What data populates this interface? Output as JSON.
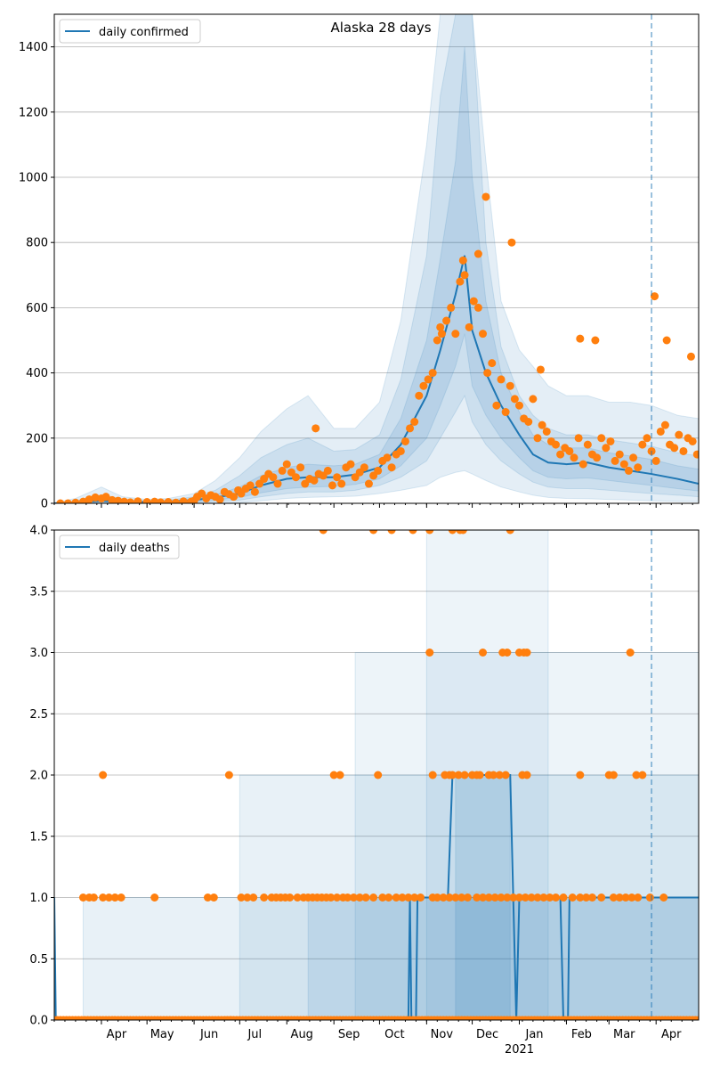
{
  "chart_data": [
    {
      "type": "line",
      "title": "Alaska 28 days",
      "legend": {
        "label": "daily confirmed",
        "placement": "top-left"
      },
      "xlim": [
        "2020-03-01",
        "2021-04-29"
      ],
      "ylim": [
        0,
        1500
      ],
      "yticks": [
        0,
        200,
        400,
        600,
        800,
        1000,
        1200,
        1400
      ],
      "grid": "y",
      "forecast_start": "2021-03-29",
      "colors": {
        "line": "#1f77b4",
        "points": "#ff7f0e",
        "band": "#1f77b4",
        "marker_line": "#1f77b4"
      },
      "line": {
        "x": [
          "2020-03-01",
          "2020-03-15",
          "2020-04-01",
          "2020-04-15",
          "2020-05-01",
          "2020-05-15",
          "2020-06-01",
          "2020-06-15",
          "2020-07-01",
          "2020-07-15",
          "2020-08-01",
          "2020-08-15",
          "2020-09-01",
          "2020-09-15",
          "2020-10-01",
          "2020-10-15",
          "2020-11-01",
          "2020-11-10",
          "2020-11-20",
          "2020-11-26",
          "2020-12-01",
          "2020-12-10",
          "2020-12-20",
          "2021-01-01",
          "2021-01-10",
          "2021-01-20",
          "2021-02-01",
          "2021-02-15",
          "2021-03-01",
          "2021-03-15",
          "2021-03-29",
          "2021-04-15",
          "2021-04-29"
        ],
        "y": [
          0,
          3,
          8,
          5,
          4,
          5,
          10,
          18,
          30,
          55,
          75,
          80,
          80,
          88,
          110,
          180,
          330,
          470,
          640,
          760,
          530,
          400,
          300,
          210,
          150,
          125,
          120,
          125,
          110,
          100,
          90,
          75,
          60
        ]
      },
      "band_x": [
        "2020-03-01",
        "2020-03-15",
        "2020-04-01",
        "2020-04-15",
        "2020-05-01",
        "2020-05-15",
        "2020-06-01",
        "2020-06-15",
        "2020-07-01",
        "2020-07-15",
        "2020-08-01",
        "2020-08-15",
        "2020-09-01",
        "2020-09-15",
        "2020-10-01",
        "2020-10-15",
        "2020-11-01",
        "2020-11-10",
        "2020-11-20",
        "2020-11-26",
        "2020-12-01",
        "2020-12-10",
        "2020-12-20",
        "2021-01-01",
        "2021-01-10",
        "2021-01-20",
        "2021-02-01",
        "2021-02-15",
        "2021-03-01",
        "2021-03-15",
        "2021-03-29",
        "2021-04-15",
        "2021-04-29"
      ],
      "bands": [
        {
          "upper": [
            2,
            15,
            50,
            20,
            12,
            15,
            30,
            70,
            140,
            220,
            290,
            330,
            230,
            230,
            310,
            560,
            1100,
            1500,
            1500,
            1500,
            1500,
            1050,
            620,
            470,
            420,
            360,
            330,
            330,
            310,
            310,
            300,
            270,
            260
          ],
          "lower": [
            0,
            0,
            0,
            0,
            0,
            0,
            0,
            0,
            2,
            8,
            15,
            18,
            20,
            22,
            30,
            40,
            55,
            80,
            95,
            100,
            90,
            70,
            50,
            35,
            25,
            18,
            15,
            14,
            12,
            10,
            8,
            6,
            5
          ],
          "opacity": 0.12
        },
        {
          "upper": [
            1,
            8,
            25,
            12,
            8,
            10,
            20,
            40,
            85,
            140,
            180,
            200,
            160,
            165,
            210,
            380,
            760,
            1250,
            1500,
            1500,
            1500,
            800,
            480,
            330,
            270,
            230,
            210,
            210,
            195,
            185,
            175,
            155,
            145
          ],
          "lower": [
            0,
            0,
            2,
            0,
            0,
            0,
            2,
            5,
            10,
            20,
            30,
            35,
            35,
            40,
            55,
            80,
            130,
            200,
            280,
            330,
            250,
            180,
            130,
            90,
            65,
            50,
            45,
            45,
            40,
            35,
            30,
            25,
            20
          ],
          "opacity": 0.12
        },
        {
          "upper": [
            0,
            5,
            14,
            9,
            6,
            7,
            14,
            26,
            50,
            85,
            110,
            120,
            115,
            120,
            150,
            260,
            500,
            750,
            1050,
            1400,
            1000,
            620,
            400,
            280,
            210,
            180,
            170,
            170,
            155,
            145,
            135,
            115,
            105
          ],
          "lower": [
            0,
            1,
            4,
            2,
            2,
            2,
            6,
            10,
            18,
            32,
            45,
            50,
            52,
            58,
            75,
            115,
            200,
            300,
            420,
            520,
            360,
            270,
            200,
            140,
            100,
            80,
            75,
            78,
            70,
            62,
            55,
            45,
            38
          ],
          "opacity": 0.12
        }
      ],
      "points": {
        "x": [
          "2020-03-05",
          "2020-03-10",
          "2020-03-15",
          "2020-03-20",
          "2020-03-24",
          "2020-03-28",
          "2020-04-01",
          "2020-04-04",
          "2020-04-08",
          "2020-04-12",
          "2020-04-16",
          "2020-04-20",
          "2020-04-25",
          "2020-05-01",
          "2020-05-06",
          "2020-05-10",
          "2020-05-15",
          "2020-05-20",
          "2020-05-25",
          "2020-05-30",
          "2020-06-01",
          "2020-06-03",
          "2020-06-06",
          "2020-06-09",
          "2020-06-12",
          "2020-06-15",
          "2020-06-18",
          "2020-06-21",
          "2020-06-24",
          "2020-06-27",
          "2020-06-30",
          "2020-07-02",
          "2020-07-05",
          "2020-07-08",
          "2020-07-11",
          "2020-07-14",
          "2020-07-17",
          "2020-07-20",
          "2020-07-23",
          "2020-07-26",
          "2020-07-29",
          "2020-08-01",
          "2020-08-04",
          "2020-08-07",
          "2020-08-10",
          "2020-08-13",
          "2020-08-16",
          "2020-08-19",
          "2020-08-22",
          "2020-08-25",
          "2020-08-28",
          "2020-08-31",
          "2020-09-03",
          "2020-09-06",
          "2020-09-09",
          "2020-09-12",
          "2020-09-15",
          "2020-09-18",
          "2020-09-21",
          "2020-09-24",
          "2020-09-27",
          "2020-09-30",
          "2020-10-03",
          "2020-10-06",
          "2020-10-09",
          "2020-10-12",
          "2020-10-15",
          "2020-10-18",
          "2020-10-21",
          "2020-10-24",
          "2020-10-27",
          "2020-10-30",
          "2020-11-02",
          "2020-11-05",
          "2020-11-08",
          "2020-11-11",
          "2020-11-14",
          "2020-11-17",
          "2020-11-20",
          "2020-11-23",
          "2020-11-26",
          "2020-11-29",
          "2020-12-02",
          "2020-12-05",
          "2020-12-08",
          "2020-12-11",
          "2020-12-14",
          "2020-12-17",
          "2020-12-20",
          "2020-12-23",
          "2020-12-26",
          "2020-12-29",
          "2021-01-01",
          "2021-01-04",
          "2021-01-07",
          "2021-01-10",
          "2021-01-13",
          "2021-01-16",
          "2021-01-19",
          "2021-01-22",
          "2021-01-25",
          "2021-01-28",
          "2021-01-31",
          "2021-02-03",
          "2021-02-06",
          "2021-02-09",
          "2021-02-12",
          "2021-02-15",
          "2021-02-18",
          "2021-02-21",
          "2021-02-24",
          "2021-02-27",
          "2021-03-02",
          "2021-03-05",
          "2021-03-08",
          "2021-03-11",
          "2021-03-14",
          "2021-03-17",
          "2021-03-20",
          "2021-03-23",
          "2021-03-26",
          "2021-03-29",
          "2021-04-01",
          "2021-04-04",
          "2021-04-07",
          "2021-04-10",
          "2021-04-13",
          "2021-04-16",
          "2021-04-19",
          "2021-04-22",
          "2021-04-25",
          "2021-04-28",
          "2020-08-20",
          "2020-11-25",
          "2020-12-10",
          "2020-12-27",
          "2021-02-10",
          "2021-02-20",
          "2021-03-31",
          "2021-04-08",
          "2021-04-24",
          "2020-12-05",
          "2020-11-10",
          "2021-01-15"
        ],
        "y": [
          0,
          0,
          2,
          5,
          12,
          18,
          15,
          20,
          10,
          8,
          5,
          3,
          6,
          4,
          5,
          3,
          4,
          2,
          6,
          5,
          8,
          20,
          30,
          15,
          25,
          20,
          12,
          35,
          28,
          20,
          40,
          30,
          45,
          55,
          35,
          60,
          75,
          90,
          80,
          60,
          100,
          120,
          95,
          80,
          110,
          60,
          75,
          70,
          90,
          85,
          100,
          55,
          80,
          60,
          110,
          120,
          80,
          95,
          110,
          60,
          85,
          100,
          130,
          140,
          110,
          150,
          160,
          190,
          230,
          250,
          330,
          360,
          380,
          400,
          500,
          520,
          560,
          600,
          520,
          680,
          700,
          540,
          620,
          600,
          520,
          400,
          430,
          300,
          380,
          280,
          360,
          320,
          300,
          260,
          250,
          320,
          200,
          240,
          220,
          190,
          180,
          150,
          170,
          160,
          140,
          200,
          120,
          180,
          150,
          140,
          200,
          170,
          190,
          130,
          150,
          120,
          100,
          140,
          110,
          180,
          200,
          160,
          130,
          220,
          240,
          180,
          170,
          210,
          160,
          200,
          190,
          150,
          230,
          745,
          940,
          800,
          505,
          500,
          635,
          500,
          450,
          765,
          540,
          410
        ],
        "note": "approximate"
      }
    },
    {
      "type": "line",
      "legend": {
        "label": "daily deaths",
        "placement": "top-left"
      },
      "xlim": [
        "2020-03-01",
        "2021-04-29"
      ],
      "ylim": [
        0,
        4.0
      ],
      "yticks": [
        "0.0",
        "0.5",
        "1.0",
        "1.5",
        "2.0",
        "2.5",
        "3.0",
        "3.5",
        "4.0"
      ],
      "xticks": [
        "Apr",
        "May",
        "Jun",
        "Jul",
        "Aug",
        "Sep",
        "Oct",
        "Nov",
        "Dec",
        "Jan",
        "Feb",
        "Mar",
        "Apr"
      ],
      "xticks_dates": [
        "2020-04-01",
        "2020-05-01",
        "2020-06-01",
        "2020-07-01",
        "2020-08-01",
        "2020-09-01",
        "2020-10-01",
        "2020-11-01",
        "2020-12-01",
        "2021-01-01",
        "2021-02-01",
        "2021-03-01",
        "2021-04-01"
      ],
      "year_label": "2021",
      "grid": "y",
      "forecast_start": "2021-03-29",
      "line": {
        "x": [
          "2020-03-01",
          "2020-03-02",
          "2020-10-20",
          "2020-10-21",
          "2020-10-22",
          "2020-10-25",
          "2020-10-26",
          "2020-10-27",
          "2020-11-15",
          "2020-11-18",
          "2020-11-20",
          "2020-12-26",
          "2020-12-28",
          "2020-12-30",
          "2021-01-01",
          "2021-01-28",
          "2021-01-30",
          "2021-02-02",
          "2021-02-03",
          "2021-02-04",
          "2021-04-29"
        ],
        "y": [
          1,
          0,
          0,
          1,
          0,
          0,
          1,
          1,
          1,
          2,
          2,
          2,
          1,
          0,
          1,
          1,
          0,
          0,
          1,
          1,
          1
        ]
      },
      "bands": [
        {
          "x_from": "2020-03-20",
          "x_to": "2021-04-29",
          "upper": 1,
          "lower": 0,
          "opacity": 0.1
        },
        {
          "x_from": "2020-07-01",
          "x_to": "2021-04-29",
          "upper": 2,
          "lower": 0,
          "opacity": 0.1
        },
        {
          "x_from": "2020-08-15",
          "x_to": "2021-04-29",
          "upper": 1,
          "lower": 0,
          "opacity": 0.12
        },
        {
          "x_from": "2020-09-15",
          "x_to": "2021-04-29",
          "upper": 3,
          "lower": 0,
          "opacity": 0.08
        },
        {
          "x_from": "2020-11-01",
          "x_to": "2021-01-20",
          "upper": 4,
          "lower": 0,
          "opacity": 0.08
        },
        {
          "x_from": "2020-11-20",
          "x_to": "2020-12-26",
          "upper": 2,
          "lower": 0,
          "opacity": 0.15
        }
      ],
      "points": {
        "x": [
          "2020-03-20",
          "2020-03-24",
          "2020-03-27",
          "2020-04-02",
          "2020-04-06",
          "2020-04-10",
          "2020-04-14",
          "2020-05-06",
          "2020-06-10",
          "2020-06-14",
          "2020-06-25",
          "2020-07-02",
          "2020-07-06",
          "2020-07-10",
          "2020-07-17",
          "2020-07-22",
          "2020-07-25",
          "2020-07-28",
          "2020-07-31",
          "2020-08-03",
          "2020-08-08",
          "2020-08-12",
          "2020-08-15",
          "2020-08-18",
          "2020-08-21",
          "2020-08-24",
          "2020-08-27",
          "2020-08-30",
          "2020-09-03",
          "2020-09-07",
          "2020-09-10",
          "2020-09-14",
          "2020-09-18",
          "2020-09-22",
          "2020-09-27",
          "2020-10-03",
          "2020-10-07",
          "2020-10-12",
          "2020-10-16",
          "2020-10-20",
          "2020-10-24",
          "2020-10-28",
          "2020-11-05",
          "2020-11-08",
          "2020-11-12",
          "2020-11-16",
          "2020-11-20",
          "2020-11-24",
          "2020-11-28",
          "2020-12-04",
          "2020-12-08",
          "2020-12-12",
          "2020-12-16",
          "2020-12-20",
          "2020-12-24",
          "2020-12-28",
          "2021-01-01",
          "2021-01-05",
          "2021-01-09",
          "2021-01-13",
          "2021-01-17",
          "2021-01-21",
          "2021-01-25",
          "2021-01-30",
          "2021-02-05",
          "2021-02-10",
          "2021-02-14",
          "2021-02-18",
          "2021-02-24",
          "2021-03-04",
          "2021-03-08",
          "2021-03-12",
          "2021-03-16",
          "2021-03-20",
          "2021-03-28",
          "2021-04-06",
          "2020-04-02",
          "2020-06-24",
          "2020-09-01",
          "2020-09-05",
          "2020-09-30",
          "2020-11-05",
          "2020-11-13",
          "2020-11-16",
          "2020-11-18",
          "2020-11-22",
          "2020-11-26",
          "2020-12-01",
          "2020-12-04",
          "2020-12-06",
          "2020-12-12",
          "2020-12-15",
          "2020-12-19",
          "2020-12-23",
          "2021-01-03",
          "2021-01-06",
          "2021-02-10",
          "2021-03-01",
          "2021-03-04",
          "2021-03-19",
          "2021-03-23",
          "2020-11-03",
          "2020-12-08",
          "2020-12-21",
          "2020-12-24",
          "2021-01-01",
          "2021-01-04",
          "2021-01-06",
          "2021-03-15",
          "2020-08-25",
          "2020-09-27",
          "2020-10-09",
          "2020-10-23",
          "2020-11-03",
          "2020-11-18",
          "2020-11-23",
          "2020-11-25",
          "2020-12-26"
        ],
        "y": [
          1,
          1,
          1,
          1,
          1,
          1,
          1,
          1,
          1,
          1,
          0,
          1,
          1,
          1,
          1,
          1,
          1,
          1,
          1,
          1,
          1,
          1,
          1,
          1,
          1,
          1,
          1,
          1,
          1,
          1,
          1,
          1,
          1,
          1,
          1,
          1,
          1,
          1,
          1,
          1,
          1,
          1,
          1,
          1,
          1,
          1,
          1,
          1,
          1,
          1,
          1,
          1,
          1,
          1,
          1,
          1,
          1,
          1,
          1,
          1,
          1,
          1,
          1,
          1,
          1,
          1,
          1,
          1,
          1,
          1,
          1,
          1,
          1,
          1,
          1,
          1,
          2,
          2,
          2,
          2,
          2,
          2,
          2,
          2,
          2,
          2,
          2,
          2,
          2,
          2,
          2,
          2,
          2,
          2,
          2,
          2,
          2,
          2,
          2,
          2,
          2,
          3,
          3,
          3,
          3,
          3,
          3,
          3,
          3,
          4,
          4,
          4,
          4,
          4,
          4,
          4,
          4,
          4
        ],
        "zero_from": "2020-03-01",
        "zero_to": "2021-04-29",
        "note": "approximate"
      }
    }
  ]
}
